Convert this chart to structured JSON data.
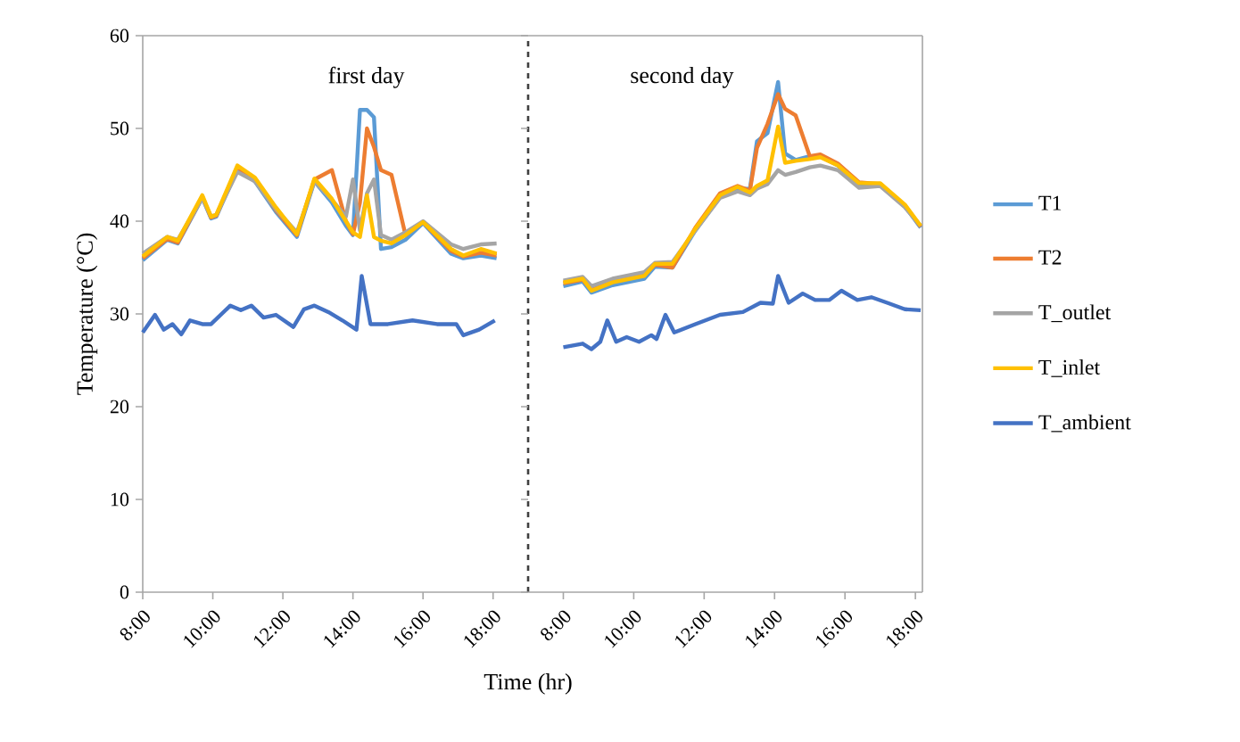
{
  "chart_data": [
    {
      "type": "line",
      "ylabel": "Temperature (°C)",
      "xlim": [
        8,
        19
      ],
      "ylim": [
        0,
        60
      ],
      "yticks": [
        0,
        10,
        20,
        30,
        40,
        50,
        60
      ],
      "xticks": [
        {
          "value": 8,
          "label": "8:00"
        },
        {
          "value": 10,
          "label": "10:00"
        },
        {
          "value": 12,
          "label": "12:00"
        },
        {
          "value": 14,
          "label": "14:00"
        },
        {
          "value": 16,
          "label": "16:00"
        },
        {
          "value": 18,
          "label": "18:00"
        }
      ],
      "grid": false,
      "marker": "none",
      "line_style": "solid",
      "ref_lines": [
        {
          "axis": "x",
          "value": 19,
          "color": "#404040",
          "line_style": "dashed"
        }
      ],
      "annotations": [
        "first day"
      ],
      "series": [
        {
          "color": "#5b9bd5",
          "x": [
            8.0,
            8.7,
            9.0,
            9.7,
            9.95,
            10.1,
            10.7,
            11.2,
            11.8,
            12.4,
            12.9,
            13.4,
            13.8,
            14.0,
            14.2,
            14.4,
            14.6,
            14.8,
            15.1,
            15.5,
            16.0,
            16.8,
            17.15,
            17.65,
            18.1
          ],
          "values": [
            35.8,
            38.0,
            37.6,
            42.5,
            40.3,
            40.5,
            45.6,
            44.3,
            41.0,
            38.3,
            44.3,
            42.0,
            39.5,
            38.5,
            52.0,
            52.0,
            51.2,
            37.0,
            37.2,
            38.0,
            39.8,
            36.5,
            36.0,
            36.3,
            36.0
          ]
        },
        {
          "color": "#ed7d31",
          "x": [
            8.0,
            8.7,
            9.0,
            9.7,
            9.95,
            10.1,
            10.7,
            11.2,
            11.8,
            12.4,
            12.9,
            13.4,
            13.8,
            14.0,
            14.2,
            14.4,
            14.6,
            14.8,
            15.1,
            15.5,
            16.0,
            16.8,
            17.15,
            17.65,
            18.1
          ],
          "values": [
            36.0,
            38.1,
            37.7,
            42.6,
            40.4,
            40.6,
            45.8,
            44.5,
            41.2,
            38.5,
            44.5,
            45.5,
            40.0,
            38.6,
            42.0,
            50.0,
            48.0,
            45.5,
            45.0,
            38.5,
            39.9,
            36.8,
            36.2,
            36.6,
            36.3
          ]
        },
        {
          "color": "#a5a5a5",
          "x": [
            8.0,
            8.7,
            9.0,
            9.7,
            9.95,
            10.1,
            10.7,
            11.2,
            11.8,
            12.4,
            12.9,
            13.4,
            13.8,
            14.0,
            14.2,
            14.4,
            14.6,
            14.8,
            15.1,
            15.5,
            16.0,
            16.8,
            17.15,
            17.65,
            18.1
          ],
          "values": [
            36.5,
            38.3,
            38.0,
            42.5,
            40.5,
            40.7,
            45.3,
            44.3,
            41.3,
            38.8,
            44.3,
            42.3,
            40.5,
            44.5,
            39.0,
            43.0,
            44.5,
            38.5,
            38.0,
            38.8,
            40.0,
            37.5,
            37.0,
            37.5,
            37.6
          ]
        },
        {
          "color": "#ffc000",
          "x": [
            8.0,
            8.7,
            9.0,
            9.7,
            9.95,
            10.1,
            10.7,
            11.2,
            11.8,
            12.4,
            12.9,
            13.4,
            13.8,
            14.0,
            14.2,
            14.4,
            14.6,
            14.8,
            15.1,
            15.5,
            16.0,
            16.8,
            17.15,
            17.65,
            18.1
          ],
          "values": [
            36.2,
            38.3,
            37.9,
            42.8,
            40.5,
            40.7,
            46.0,
            44.7,
            41.5,
            38.6,
            44.6,
            42.4,
            40.0,
            38.8,
            38.3,
            42.8,
            38.3,
            37.9,
            37.6,
            38.5,
            39.9,
            37.0,
            36.3,
            37.0,
            36.5
          ]
        },
        {
          "color": "#4472c4",
          "x": [
            8.0,
            8.35,
            8.6,
            8.85,
            9.1,
            9.35,
            9.7,
            9.95,
            10.5,
            10.8,
            11.1,
            11.45,
            11.8,
            12.3,
            12.6,
            12.9,
            13.3,
            13.7,
            14.1,
            14.25,
            14.5,
            15.0,
            15.7,
            16.4,
            16.95,
            17.15,
            17.6,
            18.05
          ],
          "values": [
            28.0,
            29.9,
            28.3,
            28.9,
            27.8,
            29.3,
            28.9,
            28.9,
            30.9,
            30.4,
            30.9,
            29.6,
            29.9,
            28.6,
            30.5,
            30.9,
            30.2,
            29.3,
            28.3,
            34.1,
            28.9,
            28.9,
            29.3,
            28.9,
            28.9,
            27.7,
            28.3,
            29.3
          ]
        }
      ]
    },
    {
      "type": "line",
      "xlabel": "Time (hr)",
      "xlim": [
        7,
        18.2
      ],
      "ylim": [
        0,
        60
      ],
      "tick_labels": "x",
      "xticks": [
        {
          "value": 8,
          "label": "8:00"
        },
        {
          "value": 10,
          "label": "10:00"
        },
        {
          "value": 12,
          "label": "12:00"
        },
        {
          "value": 14,
          "label": "14:00"
        },
        {
          "value": 16,
          "label": "16:00"
        },
        {
          "value": 18,
          "label": "18:00"
        }
      ],
      "grid": false,
      "legend": "right",
      "marker": "none",
      "line_style": "solid",
      "annotations": [
        "second day"
      ],
      "series": [
        {
          "name": "T1",
          "color": "#5b9bd5",
          "x": [
            8.0,
            8.55,
            8.8,
            9.4,
            10.3,
            10.6,
            11.1,
            11.75,
            12.45,
            12.95,
            13.3,
            13.5,
            13.8,
            14.1,
            14.3,
            14.6,
            15.0,
            15.3,
            15.8,
            16.4,
            17.0,
            17.7,
            18.15
          ],
          "values": [
            33.0,
            33.5,
            32.3,
            33.1,
            33.8,
            35.1,
            35.0,
            39.0,
            42.6,
            43.5,
            43.5,
            48.6,
            49.5,
            55.0,
            47.3,
            46.6,
            47.0,
            47.0,
            46.0,
            44.0,
            44.0,
            41.6,
            39.3
          ]
        },
        {
          "name": "T2",
          "color": "#ed7d31",
          "x": [
            8.0,
            8.55,
            8.8,
            9.4,
            10.3,
            10.6,
            11.1,
            11.75,
            12.45,
            12.95,
            13.3,
            13.5,
            13.8,
            14.1,
            14.3,
            14.6,
            15.0,
            15.3,
            15.8,
            16.4,
            17.0,
            17.7,
            18.15
          ],
          "values": [
            33.3,
            33.7,
            32.6,
            33.5,
            34.2,
            35.3,
            35.0,
            39.3,
            43.0,
            43.8,
            43.3,
            47.9,
            50.5,
            53.7,
            52.1,
            51.4,
            47.0,
            47.2,
            46.2,
            44.2,
            44.0,
            41.7,
            39.4
          ]
        },
        {
          "name": "T_outlet",
          "color": "#a5a5a5",
          "x": [
            8.0,
            8.55,
            8.8,
            9.4,
            10.3,
            10.6,
            11.1,
            11.75,
            12.45,
            12.95,
            13.3,
            13.5,
            13.8,
            14.1,
            14.3,
            14.6,
            15.0,
            15.3,
            15.8,
            16.4,
            17.0,
            17.7,
            18.15
          ],
          "values": [
            33.6,
            34.0,
            33.0,
            33.8,
            34.5,
            35.5,
            35.6,
            39.0,
            42.5,
            43.2,
            42.8,
            43.5,
            44.0,
            45.5,
            45.0,
            45.3,
            45.8,
            46.0,
            45.5,
            43.6,
            43.8,
            41.5,
            39.5
          ]
        },
        {
          "name": "T_inlet",
          "color": "#ffc000",
          "x": [
            8.0,
            8.55,
            8.8,
            9.4,
            10.3,
            10.6,
            11.1,
            11.75,
            12.45,
            12.95,
            13.3,
            13.5,
            13.8,
            14.1,
            14.3,
            14.6,
            15.0,
            15.3,
            15.8,
            16.4,
            17.0,
            17.7,
            18.15
          ],
          "values": [
            33.4,
            33.8,
            32.5,
            33.4,
            34.1,
            35.4,
            35.4,
            39.2,
            42.8,
            43.7,
            43.1,
            43.8,
            44.4,
            50.2,
            46.3,
            46.5,
            46.7,
            46.9,
            46.0,
            44.1,
            44.1,
            41.8,
            39.5
          ]
        },
        {
          "name": "T_ambient",
          "color": "#4472c4",
          "x": [
            8.0,
            8.55,
            8.8,
            9.05,
            9.25,
            9.5,
            9.8,
            10.15,
            10.5,
            10.65,
            10.9,
            11.15,
            11.75,
            12.45,
            13.1,
            13.6,
            13.95,
            14.1,
            14.4,
            14.8,
            15.15,
            15.55,
            15.9,
            16.35,
            16.75,
            17.2,
            17.7,
            18.15
          ],
          "values": [
            26.4,
            26.8,
            26.2,
            27.0,
            29.3,
            27.0,
            27.5,
            27.0,
            27.7,
            27.3,
            29.9,
            28.0,
            28.9,
            29.9,
            30.2,
            31.2,
            31.1,
            34.1,
            31.2,
            32.2,
            31.5,
            31.5,
            32.5,
            31.5,
            31.8,
            31.2,
            30.5,
            30.4
          ]
        }
      ]
    }
  ]
}
